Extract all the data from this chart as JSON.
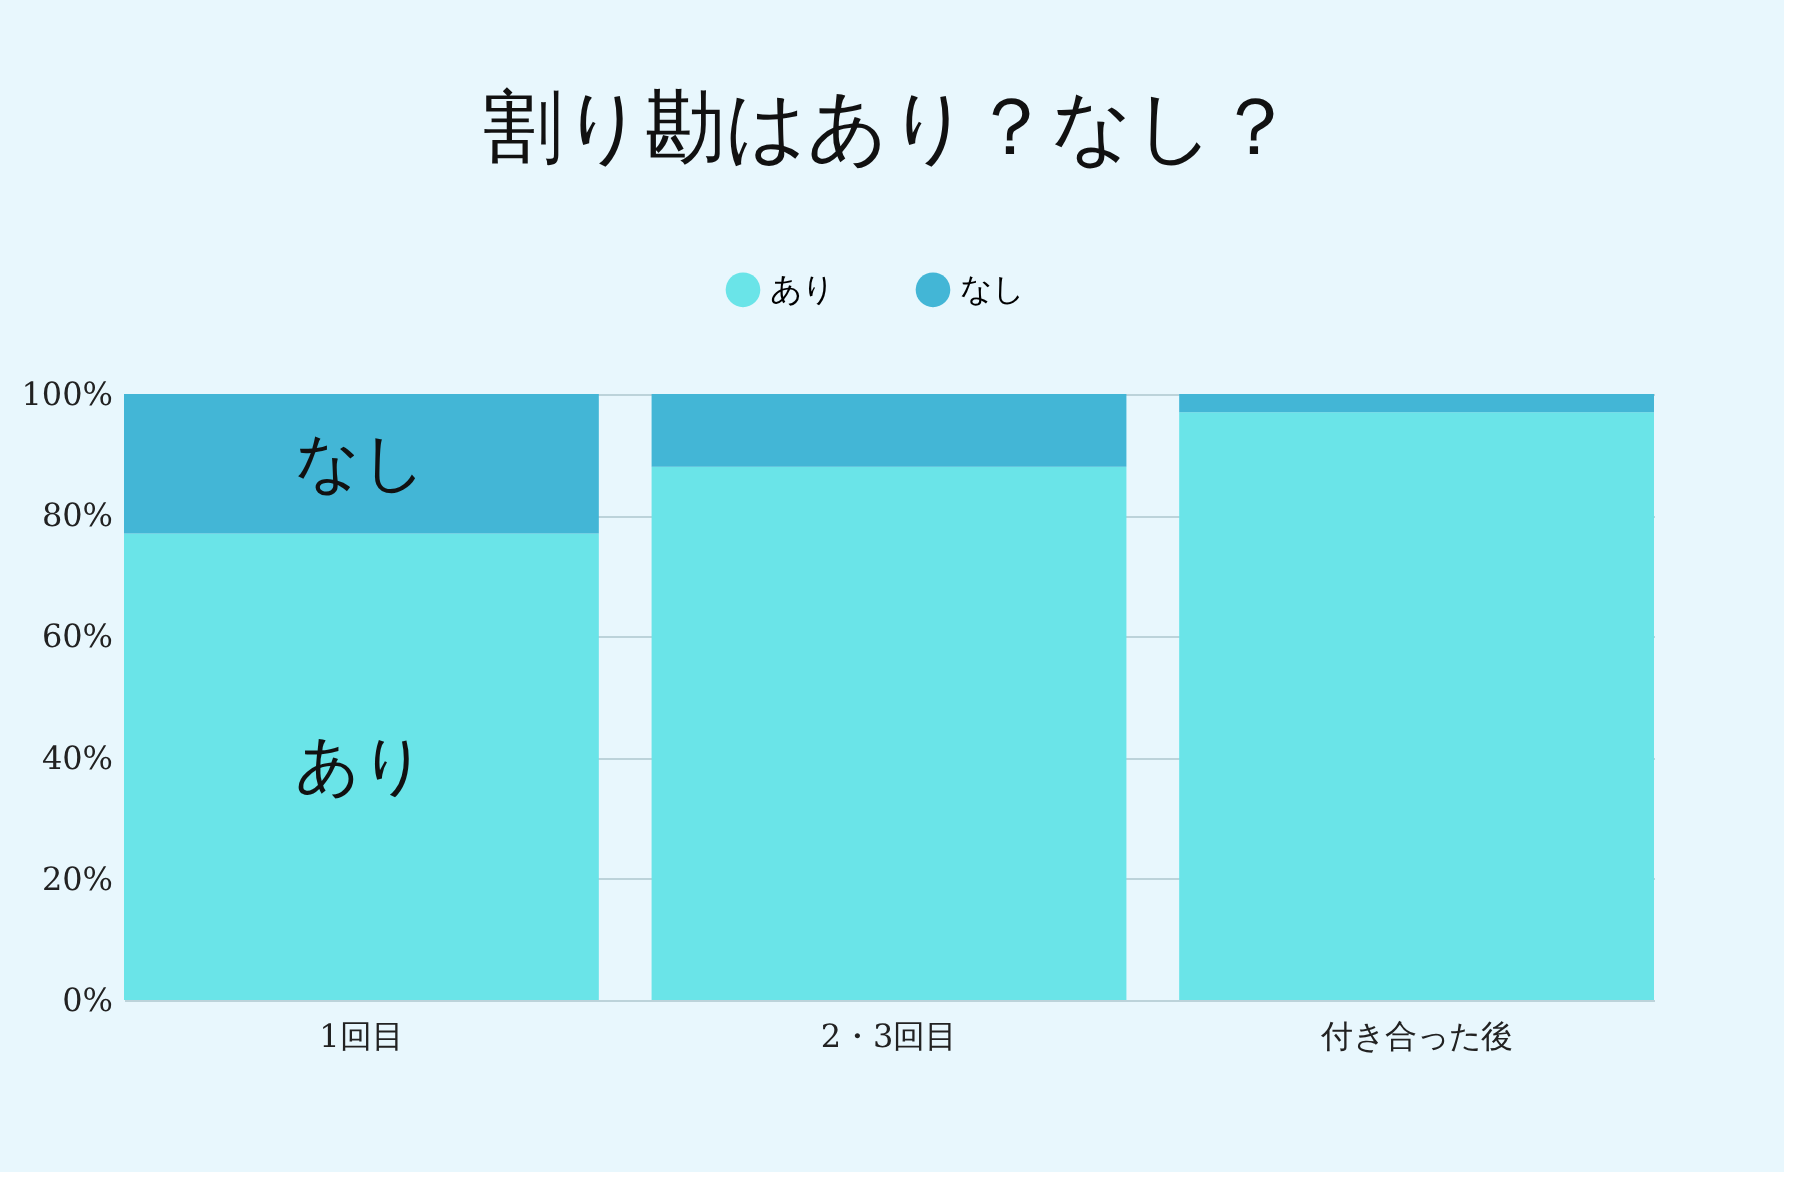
{
  "chart_data": {
    "type": "bar",
    "title": "割り勘はあり？なし？",
    "stacked": true,
    "categories": [
      "1回目",
      "2・3回目",
      "付き合った後"
    ],
    "series": [
      {
        "name": "あり",
        "color": "#6ae4e8",
        "values": [
          77,
          88,
          97
        ]
      },
      {
        "name": "なし",
        "color": "#43b6d6",
        "values": [
          23,
          12,
          3
        ]
      }
    ],
    "ylim": [
      0,
      100
    ],
    "yticks": [
      {
        "value": 0,
        "label": "0%"
      },
      {
        "value": 20,
        "label": "20%"
      },
      {
        "value": 40,
        "label": "40%"
      },
      {
        "value": 60,
        "label": "60%"
      },
      {
        "value": 80,
        "label": "80%"
      },
      {
        "value": 100,
        "label": "100%"
      }
    ],
    "grid": "y",
    "legend": "top",
    "annotations": [
      "あり",
      "なし"
    ]
  }
}
